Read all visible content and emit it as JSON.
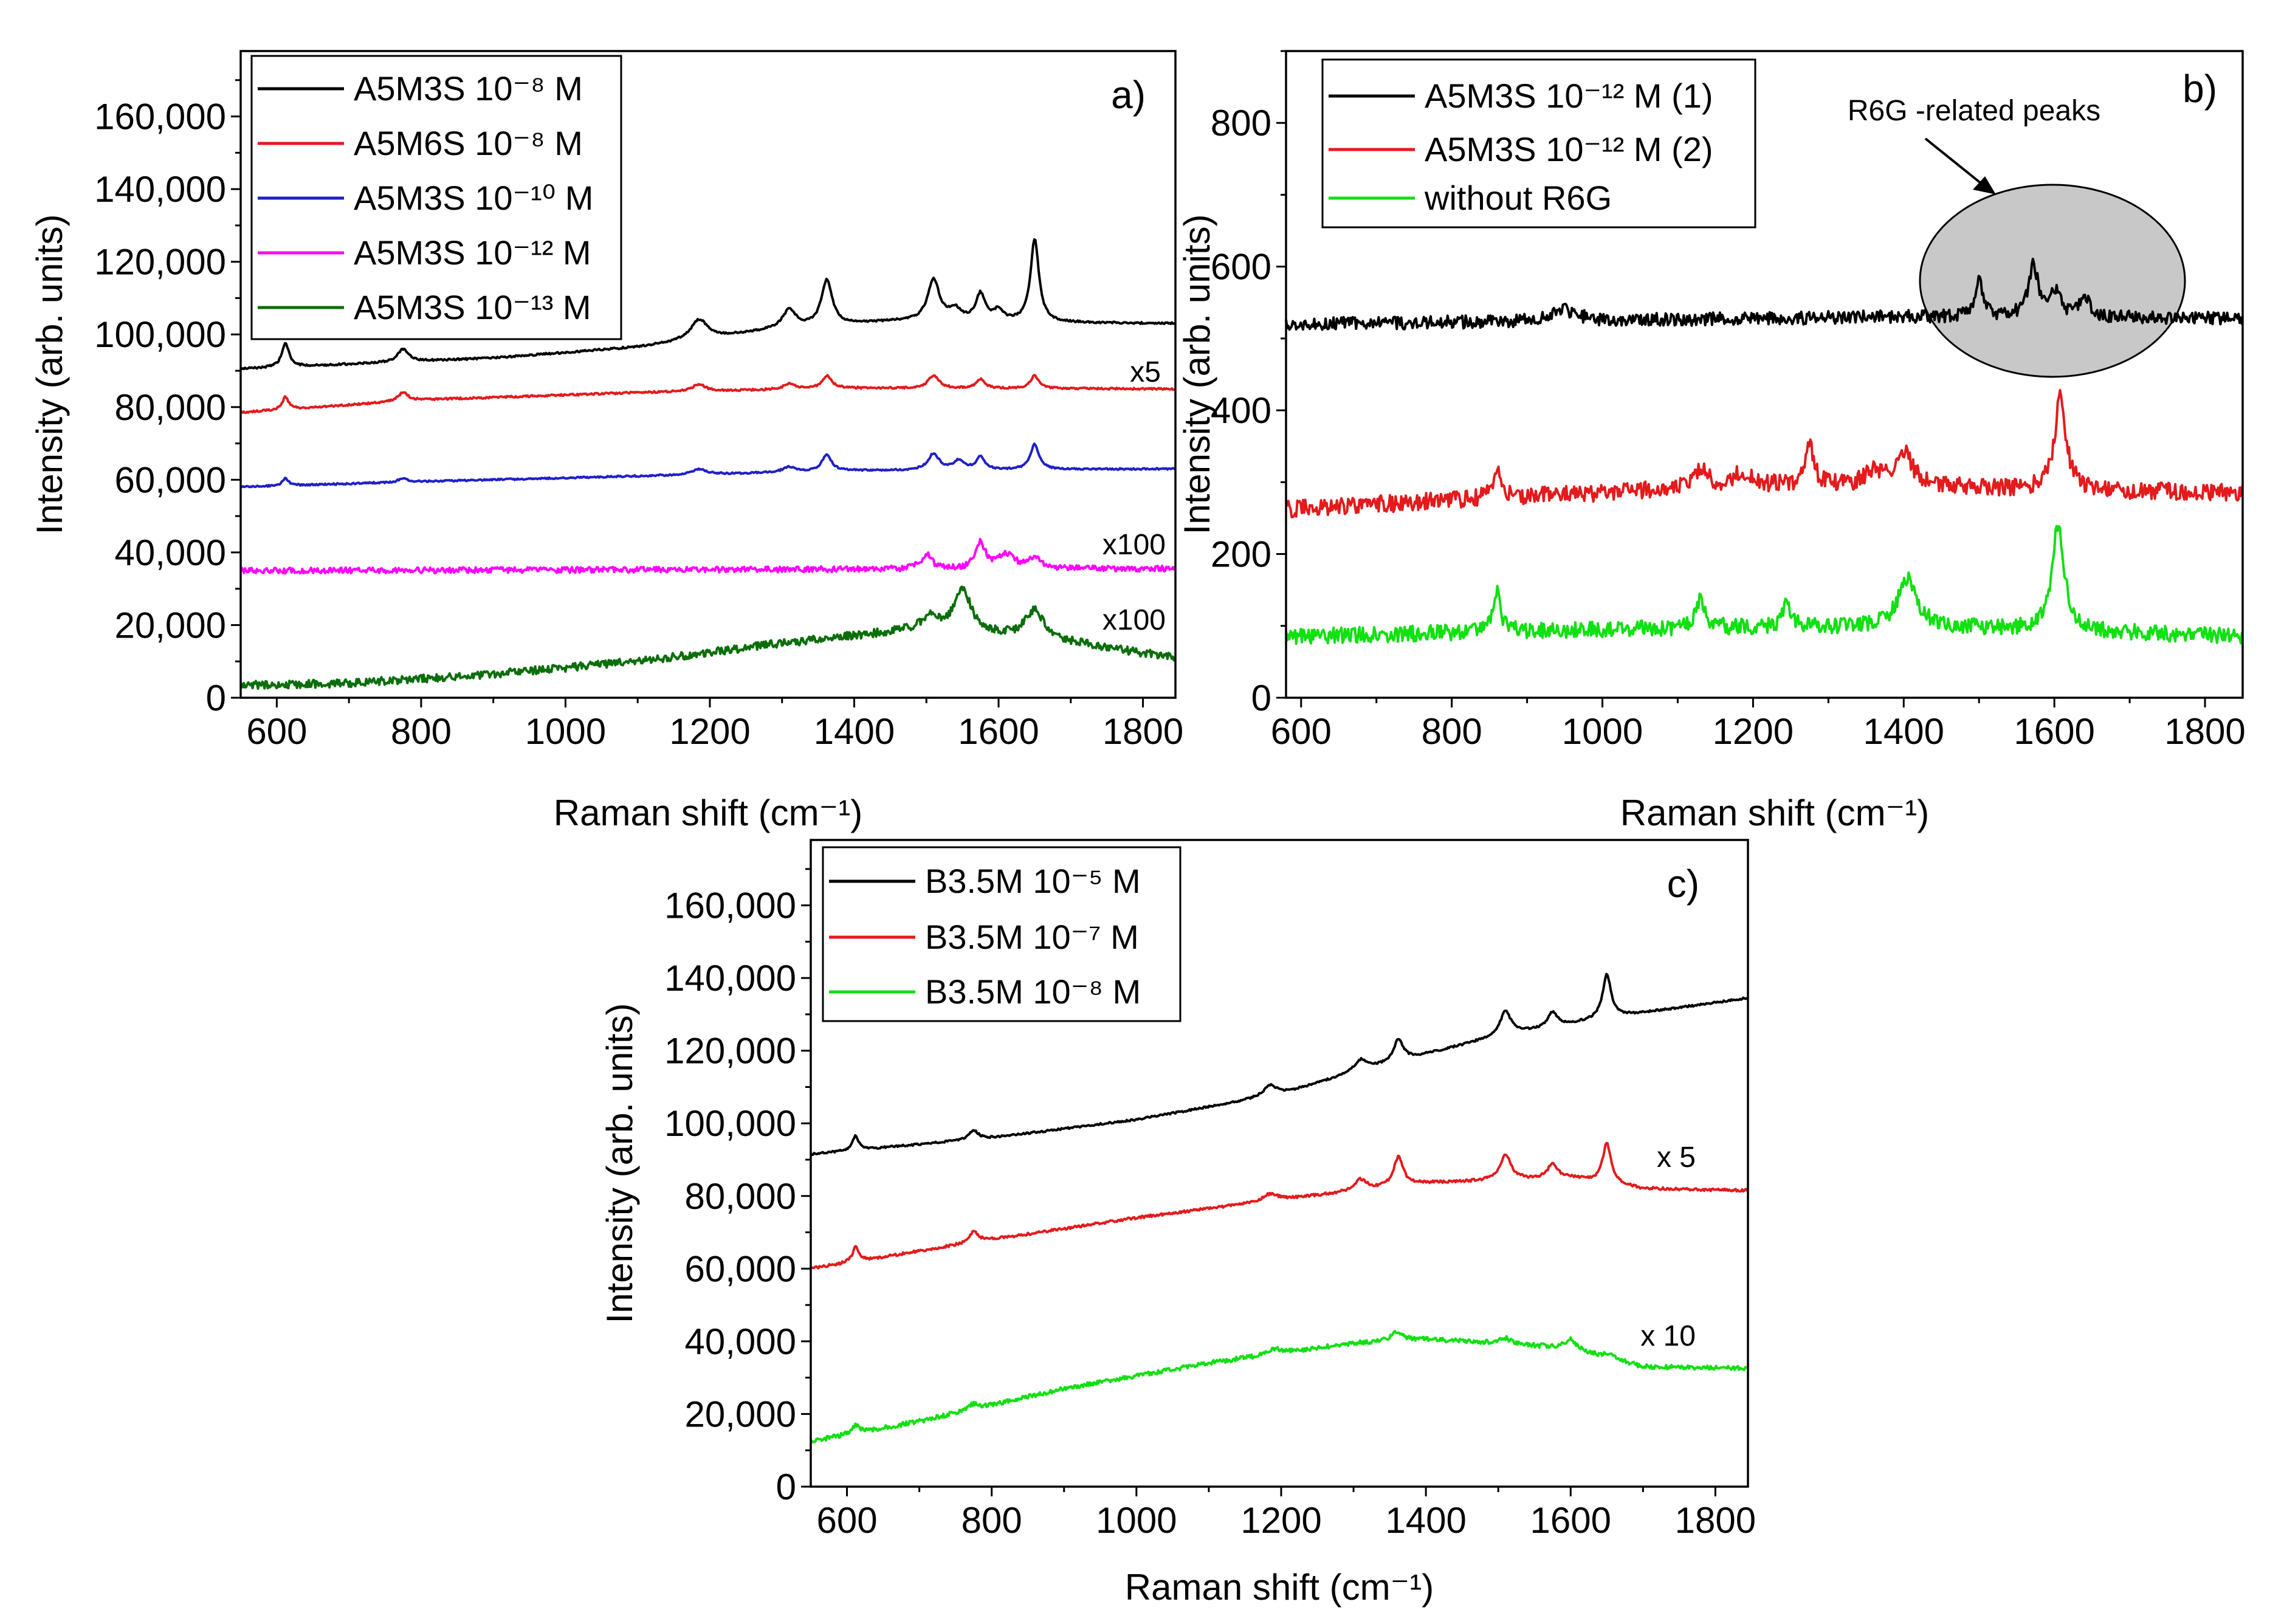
{
  "chart_data": [
    {
      "panel": "a)",
      "type": "line",
      "xlabel": "Raman shift (cm⁻¹)",
      "ylabel": "Intensity (arb. units)",
      "xlim": [
        550,
        1845
      ],
      "ylim": [
        0,
        178000
      ],
      "xticks": [
        600,
        800,
        1000,
        1200,
        1400,
        1600,
        1800
      ],
      "yticks": [
        0,
        20000,
        40000,
        60000,
        80000,
        100000,
        120000,
        140000,
        160000
      ],
      "xtick_labels": [
        "600",
        "800",
        "1000",
        "1200",
        "1400",
        "1600",
        "1800"
      ],
      "ytick_labels": [
        "0",
        "20,000",
        "40,000",
        "60,000",
        "80,000",
        "100,000",
        "120,000",
        "140,000",
        "160,000"
      ],
      "legend_position": "top-left",
      "series": [
        {
          "name": "A5M3S 10⁻⁸ M",
          "color": "#000000",
          "baseline": [
            [
              550,
              90500
            ],
            [
              700,
              91800
            ],
            [
              900,
              93500
            ],
            [
              1100,
              96500
            ],
            [
              1300,
              101500
            ],
            [
              1450,
              103500
            ],
            [
              1845,
              103000
            ]
          ],
          "peaks": [
            [
              612,
              6500,
              6
            ],
            [
              775,
              3500,
              9
            ],
            [
              1185,
              5500,
              14
            ],
            [
              1310,
              5000,
              11
            ],
            [
              1362,
              12500,
              9
            ],
            [
              1510,
              11500,
              10
            ],
            [
              1540,
              3000,
              10
            ],
            [
              1575,
              7500,
              8
            ],
            [
              1600,
              3000,
              8
            ],
            [
              1650,
              23000,
              7
            ]
          ],
          "noise": 250
        },
        {
          "name": "A5M6S 10⁻⁸ M",
          "color": "#e41a1c",
          "baseline": [
            [
              550,
              78500
            ],
            [
              800,
              82000
            ],
            [
              1100,
              84000
            ],
            [
              1400,
              85200
            ],
            [
              1845,
              85000
            ]
          ],
          "peaks": [
            [
              612,
              3500,
              5
            ],
            [
              775,
              2500,
              8
            ],
            [
              1185,
              2000,
              10
            ],
            [
              1310,
              1500,
              10
            ],
            [
              1362,
              3500,
              8
            ],
            [
              1510,
              3500,
              9
            ],
            [
              1575,
              2500,
              7
            ],
            [
              1650,
              3500,
              7
            ]
          ],
          "noise": 250
        },
        {
          "name": "A5M3S 10⁻¹⁰ M",
          "color": "#1f1fc8",
          "baseline": [
            [
              550,
              58000
            ],
            [
              800,
              59500
            ],
            [
              1100,
              61000
            ],
            [
              1400,
              62500
            ],
            [
              1845,
              63000
            ]
          ],
          "peaks": [
            [
              612,
              2000,
              5
            ],
            [
              775,
              1000,
              8
            ],
            [
              1185,
              1500,
              12
            ],
            [
              1310,
              1500,
              10
            ],
            [
              1362,
              4500,
              8
            ],
            [
              1510,
              4500,
              9
            ],
            [
              1545,
              2500,
              9
            ],
            [
              1575,
              3500,
              7
            ],
            [
              1650,
              7000,
              7
            ]
          ],
          "noise": 220
        },
        {
          "name": "A5M3S 10⁻¹² M",
          "color": "#ff00ff",
          "baseline": [
            [
              550,
              35000
            ],
            [
              1845,
              35500
            ]
          ],
          "peaks": [
            [
              1500,
              4000,
              9
            ],
            [
              1575,
              7000,
              8
            ],
            [
              1610,
              4000,
              14
            ],
            [
              1650,
              3000,
              10
            ]
          ],
          "noise": 800
        },
        {
          "name": "A5M3S 10⁻¹³ M",
          "color": "#0a6e0a",
          "baseline": [
            [
              550,
              3500
            ],
            [
              700,
              4000
            ],
            [
              900,
              6500
            ],
            [
              1100,
              10000
            ],
            [
              1300,
              15000
            ],
            [
              1450,
              18000
            ],
            [
              1500,
              19000
            ],
            [
              1700,
              15000
            ],
            [
              1845,
              11000
            ]
          ],
          "peaks": [
            [
              1505,
              3000,
              12
            ],
            [
              1550,
              12000,
              14
            ],
            [
              1650,
              8000,
              16
            ]
          ],
          "noise": 1100
        }
      ],
      "annotations": [
        {
          "text": "x5",
          "x": 1830,
          "y": 90000
        },
        {
          "text": "x100",
          "x": 1838,
          "y": 41000
        },
        {
          "text": "x100",
          "x": 1838,
          "y": 20000
        }
      ]
    },
    {
      "panel": "b)",
      "type": "line",
      "xlabel": "Raman shift (cm⁻¹)",
      "ylabel": "Intensity (arb. units)",
      "xlim": [
        580,
        1850
      ],
      "ylim": [
        0,
        900
      ],
      "xticks": [
        600,
        800,
        1000,
        1200,
        1400,
        1600,
        1800
      ],
      "yticks": [
        0,
        200,
        400,
        600,
        800
      ],
      "xtick_labels": [
        "600",
        "800",
        "1000",
        "1200",
        "1400",
        "1600",
        "1800"
      ],
      "ytick_labels": [
        "0",
        "200",
        "400",
        "600",
        "800"
      ],
      "legend_position": "top-left",
      "series": [
        {
          "name": "A5M3S 10⁻¹² M (1)",
          "color": "#000000",
          "baseline": [
            [
              580,
              520
            ],
            [
              1000,
              525
            ],
            [
              1400,
              530
            ],
            [
              1850,
              528
            ]
          ],
          "peaks": [
            [
              1500,
              50,
              7
            ],
            [
              1572,
              70,
              8
            ],
            [
              1600,
              35,
              9
            ],
            [
              1640,
              30,
              7
            ],
            [
              950,
              15,
              20
            ]
          ],
          "noise": 9
        },
        {
          "name": "A5M3S 10⁻¹² M (2)",
          "color": "#e41a1c",
          "baseline": [
            [
              580,
              262
            ],
            [
              800,
              275
            ],
            [
              1000,
              285
            ],
            [
              1200,
              295
            ],
            [
              1400,
              295
            ],
            [
              1550,
              290
            ],
            [
              1850,
              285
            ]
          ],
          "peaks": [
            [
              860,
              35,
              7
            ],
            [
              1130,
              25,
              12
            ],
            [
              1185,
              20,
              12
            ],
            [
              1275,
              55,
              7
            ],
            [
              1360,
              20,
              12
            ],
            [
              1400,
              45,
              14
            ],
            [
              1608,
              130,
              9
            ]
          ],
          "noise": 12
        },
        {
          "name": "without R6G",
          "color": "#11e011",
          "baseline": [
            [
              580,
              85
            ],
            [
              1000,
              95
            ],
            [
              1400,
              100
            ],
            [
              1850,
              85
            ]
          ],
          "peaks": [
            [
              860,
              55,
              6
            ],
            [
              1130,
              40,
              8
            ],
            [
              1245,
              40,
              5
            ],
            [
              1405,
              65,
              15
            ],
            [
              1605,
              145,
              10
            ]
          ],
          "noise": 11
        }
      ],
      "annotations": [
        {
          "text": "R6G -related peaks"
        }
      ]
    },
    {
      "panel": "c)",
      "type": "line",
      "xlabel": "Raman shift (cm⁻¹)",
      "ylabel": "Intensity (arb. units)",
      "xlim": [
        550,
        1845
      ],
      "ylim": [
        0,
        178000
      ],
      "xticks": [
        600,
        800,
        1000,
        1200,
        1400,
        1600,
        1800
      ],
      "yticks": [
        0,
        20000,
        40000,
        60000,
        80000,
        100000,
        120000,
        140000,
        160000
      ],
      "xtick_labels": [
        "600",
        "800",
        "1000",
        "1200",
        "1400",
        "1600",
        "1800"
      ],
      "ytick_labels": [
        "0",
        "20,000",
        "40,000",
        "60,000",
        "80,000",
        "100,000",
        "120,000",
        "140,000",
        "160,000"
      ],
      "legend_position": "top-left",
      "series": [
        {
          "name": "B3.5M 10⁻⁵ M",
          "color": "#000000",
          "baseline": [
            [
              550,
              91500
            ],
            [
              800,
              96000
            ],
            [
              1000,
              101000
            ],
            [
              1200,
              108000
            ],
            [
              1300,
              114000
            ],
            [
              1400,
              119000
            ],
            [
              1500,
              124000
            ],
            [
              1650,
              129000
            ],
            [
              1845,
              134500
            ]
          ],
          "peaks": [
            [
              612,
              4000,
              5
            ],
            [
              775,
              2500,
              8
            ],
            [
              1185,
              3000,
              12
            ],
            [
              1310,
              3000,
              10
            ],
            [
              1362,
              6000,
              8
            ],
            [
              1510,
              6500,
              9
            ],
            [
              1575,
              4000,
              8
            ],
            [
              1650,
              12000,
              7
            ]
          ],
          "noise": 250
        },
        {
          "name": "B3.5M 10⁻⁷ M",
          "color": "#e41a1c",
          "baseline": [
            [
              550,
              60000
            ],
            [
              800,
              68000
            ],
            [
              1000,
              74000
            ],
            [
              1200,
              79000
            ],
            [
              1400,
              83500
            ],
            [
              1600,
              85000
            ],
            [
              1700,
              82000
            ],
            [
              1845,
              81500
            ]
          ],
          "peaks": [
            [
              612,
              4000,
              5
            ],
            [
              775,
              3000,
              8
            ],
            [
              1185,
              2000,
              12
            ],
            [
              1310,
              3000,
              10
            ],
            [
              1362,
              8000,
              8
            ],
            [
              1510,
              7000,
              9
            ],
            [
              1575,
              4000,
              8
            ],
            [
              1650,
              11000,
              7
            ]
          ],
          "noise": 350
        },
        {
          "name": "B3.5M 10⁻⁸ M",
          "color": "#11e011",
          "baseline": [
            [
              550,
              12500
            ],
            [
              700,
              18000
            ],
            [
              900,
              27000
            ],
            [
              1100,
              34000
            ],
            [
              1300,
              39500
            ],
            [
              1400,
              40500
            ],
            [
              1500,
              39500
            ],
            [
              1600,
              38000
            ],
            [
              1700,
              33000
            ],
            [
              1845,
              32500
            ]
          ],
          "peaks": [
            [
              612,
              2000,
              6
            ],
            [
              775,
              1500,
              8
            ],
            [
              1190,
              1500,
              12
            ],
            [
              1360,
              2500,
              9
            ],
            [
              1510,
              1500,
              9
            ],
            [
              1600,
              2500,
              10
            ],
            [
              1655,
              1500,
              8
            ]
          ],
          "noise": 600
        }
      ],
      "annotations": [
        {
          "text": "x 5",
          "x": 1800,
          "y": 90000
        },
        {
          "text": "x 10",
          "x": 1800,
          "y": 40000
        }
      ]
    }
  ]
}
